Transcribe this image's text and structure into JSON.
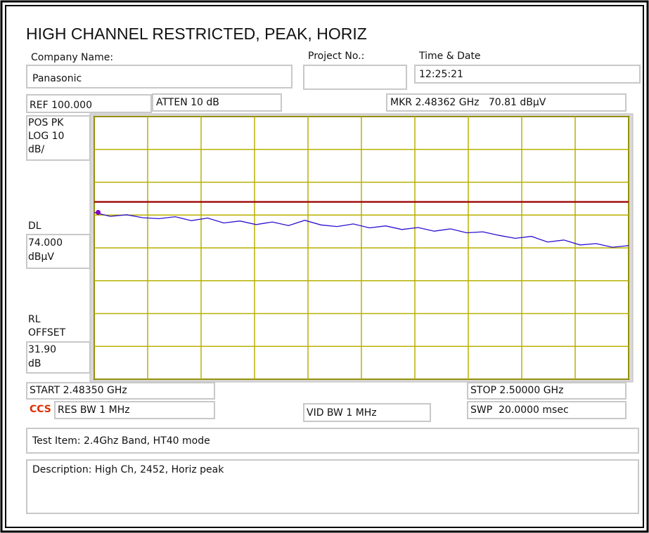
{
  "header": {
    "title": "HIGH CHANNEL RESTRICTED, PEAK, HORIZ"
  },
  "fields": {
    "company_label": "Company Name:",
    "company": "Panasonic",
    "project_label": "Project No.:",
    "time_label": "Time & Date",
    "time": "12:25:21",
    "ref": "REF 100.000",
    "atten": "ATTEN 10 dB",
    "marker": "MKR 2.48362 GHz   70.81 dBµV",
    "detector": [
      "POS PK",
      "LOG 10",
      "dB/"
    ],
    "dl_label": "DL",
    "dl_value": [
      "74.000",
      "dBµV"
    ],
    "rl_label": [
      "RL",
      "OFFSET"
    ],
    "rl_value": [
      "31.90",
      "dB"
    ],
    "start": "START 2.48350 GHz",
    "stop": "STOP 2.50000 GHz",
    "logo": "CCS",
    "res_bw": "RES BW 1 MHz",
    "vid_bw": "VID BW 1 MHz",
    "sweep": "SWP  20.0000 msec",
    "test_item": "Test Item: 2.4Ghz Band, HT40 mode",
    "description": "Description: High Ch, 2452, Horiz peak"
  },
  "chart_data": {
    "type": "line",
    "xlim": [
      2.4835,
      2.5
    ],
    "ylim": [
      20,
      100
    ],
    "xticks": [
      2.4835,
      2.48515,
      2.4868,
      2.48845,
      2.4901,
      2.49175,
      2.4934,
      2.49505,
      2.4967,
      2.49835,
      2.5
    ],
    "yticks": [
      20,
      30,
      40,
      50,
      60,
      70,
      80,
      90,
      100
    ],
    "grid": true,
    "grid_color": "#b8b000",
    "display_line": 74,
    "display_line_color": "#a01010",
    "marker": {
      "x": 2.48362,
      "y": 70.81,
      "color": "#8000c0"
    },
    "series": [
      {
        "color": "#2a10d0",
        "x": [
          2.4835,
          2.484,
          2.4845,
          2.485,
          2.4855,
          2.486,
          2.4865,
          2.487,
          2.4875,
          2.488,
          2.4885,
          2.489,
          2.4895,
          2.49,
          2.4905,
          2.491,
          2.4915,
          2.492,
          2.4925,
          2.493,
          2.4935,
          2.494,
          2.4945,
          2.495,
          2.4955,
          2.496,
          2.4965,
          2.497,
          2.4975,
          2.498,
          2.4985,
          2.499,
          2.4995,
          2.5
        ],
        "values": [
          70.8,
          69.6,
          70.1,
          69.2,
          68.9,
          69.5,
          68.3,
          69.1,
          67.6,
          68.2,
          67.1,
          67.9,
          66.8,
          68.4,
          67.0,
          66.5,
          67.3,
          66.1,
          66.7,
          65.6,
          66.2,
          65.1,
          65.8,
          64.6,
          64.9,
          63.8,
          62.9,
          63.5,
          61.8,
          62.4,
          60.9,
          61.3,
          60.2,
          60.7
        ]
      }
    ]
  }
}
